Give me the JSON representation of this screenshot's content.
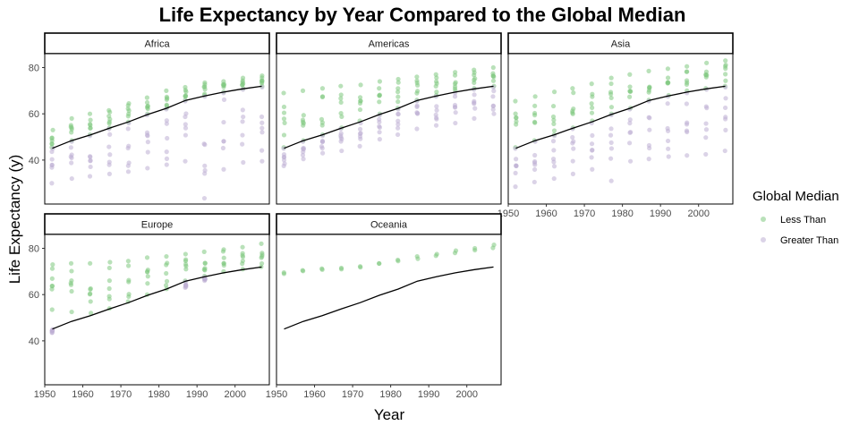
{
  "chart_data": {
    "type": "scatter",
    "title": "Life Expectancy by Year Compared to the Global Median",
    "xlabel": "Year",
    "ylabel": "Life Expectancy (y)",
    "xlim": [
      1950,
      2009
    ],
    "ylim": [
      21,
      86
    ],
    "x_ticks": [
      1950,
      1960,
      1970,
      1980,
      1990,
      2000
    ],
    "y_ticks": [
      40,
      60,
      80
    ],
    "legend": {
      "title": "Global Median",
      "placement": "right",
      "entries": [
        {
          "label": "Less Than",
          "color": "#7fc97f"
        },
        {
          "label": "Greater Than",
          "color": "#beaed4"
        }
      ]
    },
    "colors": {
      "less_than": "#7fc97f",
      "greater_than": "#beaed4",
      "median_line": "#000000"
    },
    "years": [
      1952,
      1957,
      1962,
      1967,
      1972,
      1977,
      1982,
      1987,
      1992,
      1997,
      2002,
      2007
    ],
    "global_median": [
      45.1,
      48.4,
      50.9,
      53.8,
      56.5,
      59.7,
      62.4,
      65.8,
      67.7,
      69.4,
      70.8,
      71.9
    ],
    "panels": [
      {
        "name": "Africa",
        "less_than_ranges": [
          [
            45.5,
            53
          ],
          [
            48.5,
            58
          ],
          [
            51,
            60
          ],
          [
            54,
            61.5
          ],
          [
            56.5,
            64.5
          ],
          [
            60,
            67
          ],
          [
            62.5,
            70
          ],
          [
            66,
            71.5
          ],
          [
            68,
            73.5
          ],
          [
            69.5,
            74
          ],
          [
            71,
            75.5
          ],
          [
            72,
            76.5
          ]
        ],
        "greater_than_ranges": [
          [
            30,
            45
          ],
          [
            32,
            48
          ],
          [
            33,
            50.5
          ],
          [
            34,
            53.5
          ],
          [
            35,
            56
          ],
          [
            36.5,
            59.5
          ],
          [
            38,
            62
          ],
          [
            39.5,
            65.5
          ],
          [
            23.5,
            67.5
          ],
          [
            36,
            69
          ],
          [
            39,
            70.5
          ],
          [
            39.5,
            71.5
          ]
        ]
      },
      {
        "name": "Americas",
        "less_than_ranges": [
          [
            45.5,
            69
          ],
          [
            48.5,
            70
          ],
          [
            51,
            71
          ],
          [
            54,
            72
          ],
          [
            57,
            72.5
          ],
          [
            60,
            74
          ],
          [
            62.5,
            75
          ],
          [
            66,
            76
          ],
          [
            68,
            77
          ],
          [
            70,
            78
          ],
          [
            71,
            79
          ],
          [
            72,
            80
          ]
        ],
        "greater_than_ranges": [
          [
            37.5,
            45
          ],
          [
            40.5,
            48
          ],
          [
            43,
            50.5
          ],
          [
            44,
            53.5
          ],
          [
            46,
            56
          ],
          [
            49,
            59.5
          ],
          [
            51,
            62
          ],
          [
            53.5,
            65.5
          ],
          [
            55,
            67.5
          ],
          [
            56,
            69
          ],
          [
            58,
            70.5
          ],
          [
            60,
            71.5
          ]
        ]
      },
      {
        "name": "Asia",
        "less_than_ranges": [
          [
            45.5,
            65.5
          ],
          [
            48.5,
            67.5
          ],
          [
            51,
            69.5
          ],
          [
            54,
            71
          ],
          [
            57,
            73
          ],
          [
            60,
            75.5
          ],
          [
            62.5,
            77
          ],
          [
            66,
            78.5
          ],
          [
            68,
            79.5
          ],
          [
            70,
            80.5
          ],
          [
            71,
            82
          ],
          [
            72,
            83
          ]
        ],
        "greater_than_ranges": [
          [
            28.5,
            45
          ],
          [
            30.5,
            48
          ],
          [
            32,
            50.5
          ],
          [
            34,
            53.5
          ],
          [
            36,
            56
          ],
          [
            31,
            59.5
          ],
          [
            39.5,
            62
          ],
          [
            40.5,
            65.5
          ],
          [
            41.5,
            67.5
          ],
          [
            42,
            69
          ],
          [
            42.5,
            70.5
          ],
          [
            44,
            71.5
          ]
        ]
      },
      {
        "name": "Europe",
        "less_than_ranges": [
          [
            53.5,
            73
          ],
          [
            52.5,
            73.5
          ],
          [
            52,
            73.5
          ],
          [
            54,
            74
          ],
          [
            57,
            74.5
          ],
          [
            60,
            76
          ],
          [
            62.5,
            76.5
          ],
          [
            66,
            77.5
          ],
          [
            68,
            78.5
          ],
          [
            70,
            79.5
          ],
          [
            71,
            80.5
          ],
          [
            72,
            82
          ]
        ],
        "greater_than_ranges": [
          [
            43.5,
            45
          ],
          [
            null,
            null
          ],
          [
            null,
            null
          ],
          [
            null,
            null
          ],
          [
            null,
            null
          ],
          [
            null,
            null
          ],
          [
            null,
            null
          ],
          [
            63,
            65.5
          ],
          [
            66,
            67.5
          ],
          [
            null,
            null
          ],
          [
            null,
            null
          ],
          [
            null,
            null
          ]
        ]
      },
      {
        "name": "Oceania",
        "less_than_ranges": [
          [
            69,
            69.5
          ],
          [
            70.2,
            70.5
          ],
          [
            70.8,
            71.2
          ],
          [
            71,
            71.5
          ],
          [
            71.8,
            72.2
          ],
          [
            73.4,
            73.5
          ],
          [
            74.5,
            75
          ],
          [
            75.5,
            76.5
          ],
          [
            76.8,
            77.5
          ],
          [
            78,
            79
          ],
          [
            79.2,
            80
          ],
          [
            80.2,
            81.5
          ]
        ],
        "greater_than_ranges": [
          [
            null,
            null
          ],
          [
            null,
            null
          ],
          [
            null,
            null
          ],
          [
            null,
            null
          ],
          [
            null,
            null
          ],
          [
            null,
            null
          ],
          [
            null,
            null
          ],
          [
            null,
            null
          ],
          [
            null,
            null
          ],
          [
            null,
            null
          ],
          [
            null,
            null
          ],
          [
            null,
            null
          ]
        ]
      }
    ]
  }
}
